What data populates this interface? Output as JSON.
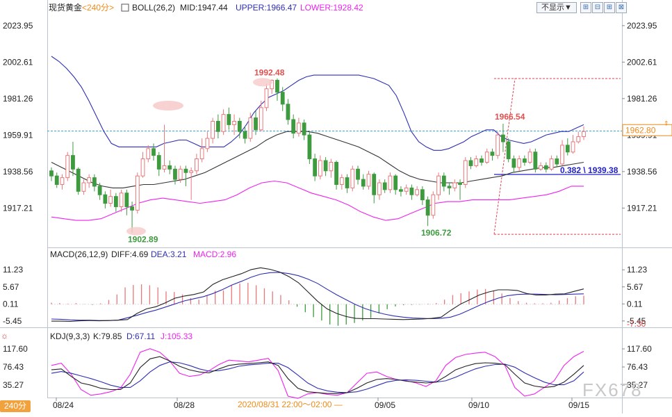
{
  "colors": {
    "up": "#e8787a",
    "down": "#3e9a3e",
    "boll_upper": "#2e2eb4",
    "boll_mid": "#333333",
    "boll_lower": "#ee22ee",
    "dea": "#2e2eb4",
    "macd": "#ee22ee",
    "last_price": "#f08a18"
  },
  "header": {
    "instrument": "现货黄金",
    "timeframe": "<240分>",
    "indicator": "BOLL(26,2)",
    "mid": "MID:1947.44",
    "upper": "UPPER:1966.47",
    "lower": "LOWER:1928.42"
  },
  "controls": {
    "hide_label": "不显示▼",
    "zoom_in": "⊞",
    "zoom_out": "⊟",
    "add": "⊞",
    "close": "⊠"
  },
  "macd_header": {
    "title": "MACD(26,12,9)",
    "diff": "DIFF:4.69",
    "dea": "DEA:3.21",
    "macd": "MACD:2.96"
  },
  "kdj_header": {
    "title": "KDJ(9,3,3)",
    "k": "K:79.85",
    "d": "D:67.11",
    "j": "J:105.33"
  },
  "timeframe_badge": "240分",
  "range_label": "2020/08/31 22:00～02:00 —",
  "watermark": "FX678",
  "chart_data": [
    {
      "type": "candlestick",
      "price_axis_ticks": [
        2023.95,
        2002.61,
        1981.26,
        1959.91,
        1938.56,
        1917.21
      ],
      "price_axis_labels": [
        "2023.95",
        "2002.61",
        "1981.26",
        "1959.91",
        "1938.56",
        "1917.21"
      ],
      "ylim": [
        1895,
        2030
      ],
      "last_price": 1962.8,
      "last_price_label": "1962.80",
      "reference_line": 1962.3,
      "x_dates": [
        "08/24",
        "08/28",
        "09/05",
        "09/10",
        "09/15"
      ],
      "candles": [
        [
          1939,
          1936,
          1941,
          1933
        ],
        [
          1936,
          1931,
          1938,
          1929
        ],
        [
          1931,
          1935,
          1937,
          1928
        ],
        [
          1935,
          1948,
          1950,
          1933
        ],
        [
          1948,
          1940,
          1956,
          1936
        ],
        [
          1940,
          1927,
          1941,
          1925
        ],
        [
          1927,
          1932,
          1934,
          1925
        ],
        [
          1932,
          1935,
          1937,
          1929
        ],
        [
          1935,
          1930,
          1937,
          1927
        ],
        [
          1930,
          1925,
          1932,
          1922
        ],
        [
          1925,
          1920,
          1927,
          1917
        ],
        [
          1920,
          1924,
          1928,
          1918
        ],
        [
          1924,
          1918,
          1926,
          1915
        ],
        [
          1918,
          1926,
          1928,
          1915
        ],
        [
          1926,
          1918,
          1928,
          1913
        ],
        [
          1918,
          1916,
          1921,
          1902.89
        ],
        [
          1916,
          1936,
          1938,
          1914
        ],
        [
          1936,
          1946,
          1950,
          1935
        ],
        [
          1946,
          1952,
          1954,
          1944
        ],
        [
          1952,
          1948,
          1955,
          1945
        ],
        [
          1948,
          1940,
          1950,
          1936
        ],
        [
          1940,
          1942,
          1966,
          1938
        ],
        [
          1942,
          1940,
          1945,
          1937
        ],
        [
          1940,
          1934,
          1942,
          1931
        ],
        [
          1934,
          1940,
          1942,
          1932
        ],
        [
          1940,
          1938,
          1942,
          1930
        ],
        [
          1938,
          1939,
          1941,
          1922
        ],
        [
          1939,
          1946,
          1949,
          1937
        ],
        [
          1946,
          1952,
          1958,
          1944
        ],
        [
          1952,
          1958,
          1962,
          1950
        ],
        [
          1958,
          1968,
          1970,
          1955
        ],
        [
          1968,
          1962,
          1972,
          1958
        ],
        [
          1962,
          1972,
          1975,
          1960
        ],
        [
          1972,
          1966,
          1976,
          1963
        ],
        [
          1966,
          1968,
          1972,
          1960
        ],
        [
          1968,
          1962,
          1970,
          1958
        ],
        [
          1962,
          1958,
          1965,
          1955
        ],
        [
          1958,
          1970,
          1973,
          1956
        ],
        [
          1970,
          1963,
          1974,
          1960
        ],
        [
          1963,
          1976,
          1980,
          1962
        ],
        [
          1976,
          1987,
          1990,
          1974
        ],
        [
          1987,
          1992,
          1992.48,
          1984
        ],
        [
          1992,
          1985,
          1993,
          1980
        ],
        [
          1985,
          1978,
          1988,
          1974
        ],
        [
          1978,
          1969,
          1981,
          1966
        ],
        [
          1969,
          1961,
          1972,
          1958
        ],
        [
          1961,
          1967,
          1970,
          1959
        ],
        [
          1967,
          1960,
          1969,
          1957
        ],
        [
          1960,
          1946,
          1962,
          1943
        ],
        [
          1946,
          1936,
          1949,
          1933
        ],
        [
          1936,
          1945,
          1948,
          1934
        ],
        [
          1945,
          1939,
          1947,
          1936
        ],
        [
          1939,
          1944,
          1946,
          1935
        ],
        [
          1944,
          1931,
          1945,
          1928
        ],
        [
          1931,
          1935,
          1937,
          1928
        ],
        [
          1935,
          1929,
          1937,
          1926
        ],
        [
          1929,
          1940,
          1942,
          1927
        ],
        [
          1940,
          1934,
          1942,
          1931
        ],
        [
          1934,
          1930,
          1937,
          1928
        ],
        [
          1930,
          1937,
          1939,
          1928
        ],
        [
          1937,
          1925,
          1938,
          1920
        ],
        [
          1925,
          1932,
          1934,
          1922
        ],
        [
          1932,
          1928,
          1934,
          1926
        ],
        [
          1928,
          1936,
          1938,
          1926
        ],
        [
          1936,
          1928,
          1937,
          1925
        ],
        [
          1928,
          1927,
          1930,
          1924
        ],
        [
          1927,
          1929,
          1931,
          1925
        ],
        [
          1929,
          1925,
          1931,
          1922
        ],
        [
          1925,
          1928,
          1930,
          1924
        ],
        [
          1928,
          1922,
          1930,
          1919
        ],
        [
          1922,
          1913,
          1924,
          1906.72
        ],
        [
          1913,
          1925,
          1927,
          1911
        ],
        [
          1925,
          1936,
          1938,
          1922
        ],
        [
          1936,
          1930,
          1938,
          1927
        ],
        [
          1930,
          1929,
          1932,
          1925
        ],
        [
          1929,
          1932,
          1934,
          1927
        ],
        [
          1932,
          1931,
          1934,
          1922
        ],
        [
          1931,
          1945,
          1947,
          1929
        ],
        [
          1945,
          1942,
          1947,
          1940
        ],
        [
          1942,
          1946,
          1948,
          1941
        ],
        [
          1946,
          1944,
          1948,
          1942
        ],
        [
          1944,
          1950,
          1952,
          1943
        ],
        [
          1950,
          1948,
          1952,
          1945
        ],
        [
          1948,
          1960,
          1962,
          1946
        ],
        [
          1960,
          1956,
          1966.54,
          1950
        ],
        [
          1956,
          1946,
          1958,
          1944
        ],
        [
          1946,
          1941,
          1948,
          1938
        ],
        [
          1941,
          1946,
          1948,
          1939
        ],
        [
          1946,
          1944,
          1948,
          1942
        ],
        [
          1944,
          1950,
          1952,
          1943
        ],
        [
          1950,
          1940,
          1952,
          1938
        ],
        [
          1940,
          1942,
          1944,
          1939
        ],
        [
          1942,
          1940,
          1944,
          1938
        ],
        [
          1940,
          1946,
          1948,
          1939
        ],
        [
          1946,
          1943,
          1948,
          1941
        ],
        [
          1943,
          1954,
          1957,
          1942
        ],
        [
          1954,
          1950,
          1958,
          1948
        ],
        [
          1950,
          1956,
          1960,
          1949
        ],
        [
          1956,
          1959,
          1962,
          1955
        ],
        [
          1959,
          1962,
          1965,
          1957
        ]
      ],
      "boll_upper": [
        2006,
        2003,
        1999,
        1994,
        1988,
        1980,
        1971,
        1962,
        1955,
        1953,
        1953,
        1953,
        1953,
        1953,
        1953,
        1955,
        1956,
        1957,
        1957,
        1955,
        1953,
        1953,
        1953,
        1953,
        1956,
        1960,
        1966,
        1973,
        1978,
        1982,
        1984,
        1986,
        1989,
        1992,
        1994,
        1995,
        1995,
        1995,
        1995,
        1995,
        1995,
        1995,
        1994,
        1993,
        1991,
        1989,
        1983,
        1973,
        1962,
        1956,
        1953,
        1951,
        1951,
        1952,
        1954,
        1956,
        1959,
        1961,
        1963,
        1963,
        1959,
        1957,
        1956,
        1955,
        1956,
        1958,
        1960,
        1961,
        1962,
        1962,
        1964,
        1966
      ],
      "boll_mid": [
        1944,
        1941,
        1938,
        1935,
        1932,
        1930,
        1929,
        1929,
        1930,
        1931,
        1931,
        1932,
        1933,
        1934,
        1936,
        1938,
        1941,
        1944,
        1947,
        1950,
        1953,
        1957,
        1960,
        1962,
        1962,
        1962,
        1961,
        1959,
        1957,
        1955,
        1953,
        1950,
        1947,
        1943,
        1939,
        1936,
        1934,
        1933,
        1932,
        1932,
        1932,
        1933,
        1934,
        1935,
        1936,
        1938,
        1939,
        1940,
        1941,
        1941,
        1942,
        1943,
        1944
      ],
      "boll_lower": [
        1912,
        1911,
        1910,
        1910,
        1911,
        1914,
        1917,
        1920,
        1922,
        1923,
        1922,
        1921,
        1920,
        1921,
        1922,
        1925,
        1929,
        1932,
        1933,
        1932,
        1929,
        1926,
        1924,
        1922,
        1919,
        1915,
        1912,
        1910,
        1911,
        1914,
        1917,
        1920,
        1921,
        1921,
        1922,
        1922,
        1922,
        1922,
        1923,
        1924,
        1925,
        1927,
        1930,
        1930
      ],
      "fib_line_level": 1938.5,
      "fib_label": "0.382 \\ 1939.38",
      "fib_box_top": 1993,
      "fib_box_bottom": 1906.72,
      "annotations": [
        {
          "label": "1992.48",
          "value": 1992.48,
          "color": "#e05050"
        },
        {
          "label": "1902.89",
          "value": 1902.89,
          "color": "#3e9a3e"
        },
        {
          "label": "1906.72",
          "value": 1906.72,
          "color": "#3e9a3e"
        },
        {
          "label": "1966.54",
          "value": 1966.54,
          "color": "#e05050"
        }
      ]
    },
    {
      "type": "bar",
      "name": "MACD(26,12,9)",
      "axis_ticks": [
        11.23,
        5.67,
        0.11,
        -5.45
      ],
      "axis_labels": [
        "11.23",
        "5.67",
        "0.11",
        "-5.45"
      ],
      "min_label": "-7.30",
      "ylim": [
        -7.3,
        14
      ],
      "diff": [
        -5.5,
        -5.5,
        -5.6,
        -5.4,
        -5.3,
        -5.4,
        -5.3,
        -5.2,
        -5.0,
        -3.0,
        -1.5,
        -0.8,
        0.5,
        2.0,
        2.7,
        3.2,
        4.0,
        6.5,
        8.0,
        9.0,
        10.0,
        11.3,
        11.9,
        11.4,
        10.5,
        9.0,
        7.0,
        4.0,
        1.0,
        -1.5,
        -3.0,
        -4.0,
        -4.6,
        -4.7,
        -4.7,
        -4.8,
        -4.9,
        -5.0,
        -4.9,
        -4.8,
        -4.6,
        -4.2,
        -2.0,
        0.0,
        1.5,
        3.0,
        4.0,
        4.7,
        4.7,
        4.5,
        3.5,
        3.0,
        3.0,
        3.3,
        3.4,
        4.2,
        5.0
      ],
      "dea": [
        -4.8,
        -4.9,
        -5.1,
        -5.2,
        -5.2,
        -5.3,
        -5.3,
        -5.2,
        -4.4,
        -3.6,
        -2.7,
        -1.9,
        -0.9,
        0.1,
        1.1,
        1.8,
        2.5,
        3.5,
        4.8,
        6.3,
        7.5,
        8.8,
        9.8,
        10.3,
        10.4,
        10.0,
        9.3,
        8.2,
        6.8,
        4.9,
        3.1,
        1.5,
        -0.1,
        -1.4,
        -2.4,
        -3.2,
        -3.8,
        -4.2,
        -4.5,
        -4.6,
        -4.7,
        -4.6,
        -4.2,
        -3.2,
        -1.8,
        -0.4,
        0.9,
        2.0,
        2.8,
        3.2,
        3.3,
        3.3,
        3.2,
        3.1,
        3.2,
        3.3,
        3.4
      ],
      "hist": [
        0.5,
        0.4,
        0.2,
        0.4,
        0.1,
        -0.2,
        0.3,
        1.4,
        3.2,
        5.5,
        6.3,
        6.5,
        6.2,
        5.5,
        4.2,
        4.0,
        3.2,
        2.0,
        1.5,
        2.8,
        4.4,
        4.5,
        6.2,
        6.8,
        7.0,
        6.2,
        5.2,
        4.2,
        3.0,
        1.3,
        -0.8,
        -2.6,
        -4.2,
        -5.3,
        -6.6,
        -7.0,
        -6.6,
        -6.1,
        -5.3,
        -4.5,
        -3.0,
        -1.6,
        -0.7,
        -0.3,
        -0.2,
        -0.1,
        0.2,
        0.4,
        1.5,
        3.0,
        3.6,
        4.2,
        4.8,
        5.0,
        4.5,
        3.5,
        2.0,
        1.0,
        0.5,
        0.3,
        0.3,
        0.5,
        1.2,
        2.0,
        2.6,
        2.8
      ]
    },
    {
      "type": "line",
      "name": "KDJ(9,3,3)",
      "axis_ticks": [
        117.6,
        76.43,
        35.27
      ],
      "axis_labels": [
        "117.60",
        "76.43",
        "35.27"
      ],
      "ylim": [
        10,
        135
      ],
      "k": [
        70,
        72,
        55,
        40,
        35,
        28,
        25,
        25,
        40,
        75,
        95,
        100,
        90,
        78,
        70,
        65,
        63,
        72,
        80,
        83,
        84,
        86,
        88,
        80,
        50,
        28,
        20,
        18,
        16,
        16,
        18,
        28,
        40,
        48,
        50,
        48,
        44,
        42,
        40,
        42,
        55,
        70,
        78,
        84,
        86,
        85,
        82,
        60,
        40,
        33,
        30,
        32,
        42,
        60,
        80
      ],
      "d": [
        62,
        66,
        62,
        56,
        50,
        43,
        35,
        30,
        30,
        45,
        65,
        80,
        88,
        86,
        80,
        72,
        67,
        68,
        72,
        78,
        81,
        83,
        85,
        85,
        75,
        58,
        40,
        28,
        22,
        19,
        18,
        20,
        26,
        34,
        42,
        46,
        47,
        46,
        44,
        42,
        45,
        53,
        63,
        72,
        78,
        82,
        83,
        76,
        63,
        52,
        42,
        36,
        36,
        45,
        65
      ],
      "j": [
        80,
        85,
        60,
        25,
        12,
        15,
        20,
        28,
        60,
        110,
        118,
        110,
        90,
        62,
        55,
        58,
        68,
        82,
        92,
        90,
        88,
        92,
        96,
        68,
        10,
        5,
        15,
        18,
        14,
        12,
        18,
        40,
        62,
        65,
        55,
        48,
        45,
        40,
        32,
        45,
        80,
        98,
        105,
        108,
        110,
        100,
        80,
        30,
        10,
        15,
        30,
        45,
        80,
        100,
        112
      ]
    }
  ]
}
